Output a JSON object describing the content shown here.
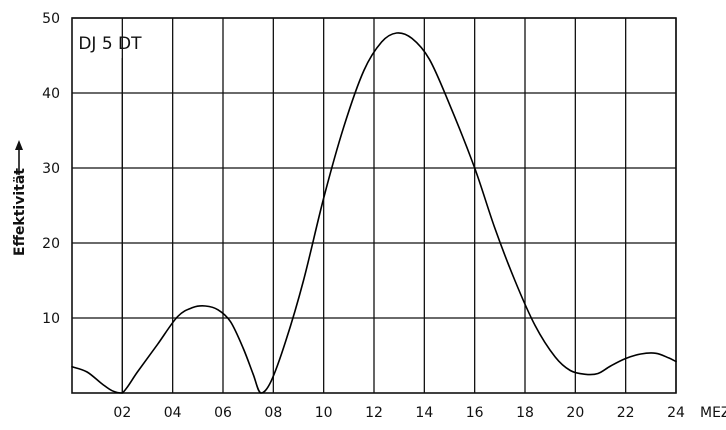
{
  "chart_data": {
    "type": "line",
    "title": "",
    "xlabel": "MEZ",
    "ylabel": "Effektivität",
    "xlim": [
      0,
      24
    ],
    "ylim": [
      0,
      50
    ],
    "grid": true,
    "x_ticks": [
      2,
      4,
      6,
      8,
      10,
      12,
      14,
      16,
      18,
      20,
      22,
      24
    ],
    "x_tick_labels": [
      "02",
      "04",
      "06",
      "08",
      "10",
      "12",
      "14",
      "16",
      "18",
      "20",
      "22",
      "24"
    ],
    "y_ticks": [
      10,
      20,
      30,
      40,
      50
    ],
    "y_tick_labels": [
      "10",
      "20",
      "30",
      "40",
      "50"
    ],
    "annotation": {
      "text": "DJ 5 DT",
      "x": 2
    },
    "series": [
      {
        "x": [
          0,
          0.6,
          1.2,
          1.6,
          2.0,
          2.6,
          3.4,
          4.2,
          4.8,
          5.3,
          5.8,
          6.3,
          6.8,
          7.2,
          7.5,
          7.9,
          8.5,
          9.2,
          10.0,
          10.8,
          11.6,
          12.3,
          12.9,
          13.5,
          14.2,
          15.0,
          16.0,
          16.8,
          17.6,
          18.4,
          19.2,
          19.8,
          20.4,
          20.9,
          21.4,
          22.0,
          22.6,
          23.2,
          23.7,
          24.0
        ],
        "y": [
          3.5,
          2.8,
          1.2,
          0.3,
          0,
          2.8,
          6.5,
          10.2,
          11.4,
          11.6,
          11.1,
          9.5,
          6.0,
          2.5,
          0,
          1.5,
          7.0,
          15.0,
          26.0,
          35.5,
          43.0,
          46.8,
          48.0,
          47.3,
          44.5,
          38.5,
          30.0,
          22.0,
          15.0,
          9.0,
          4.8,
          3.0,
          2.5,
          2.6,
          3.6,
          4.6,
          5.2,
          5.3,
          4.7,
          4.2
        ]
      }
    ]
  }
}
